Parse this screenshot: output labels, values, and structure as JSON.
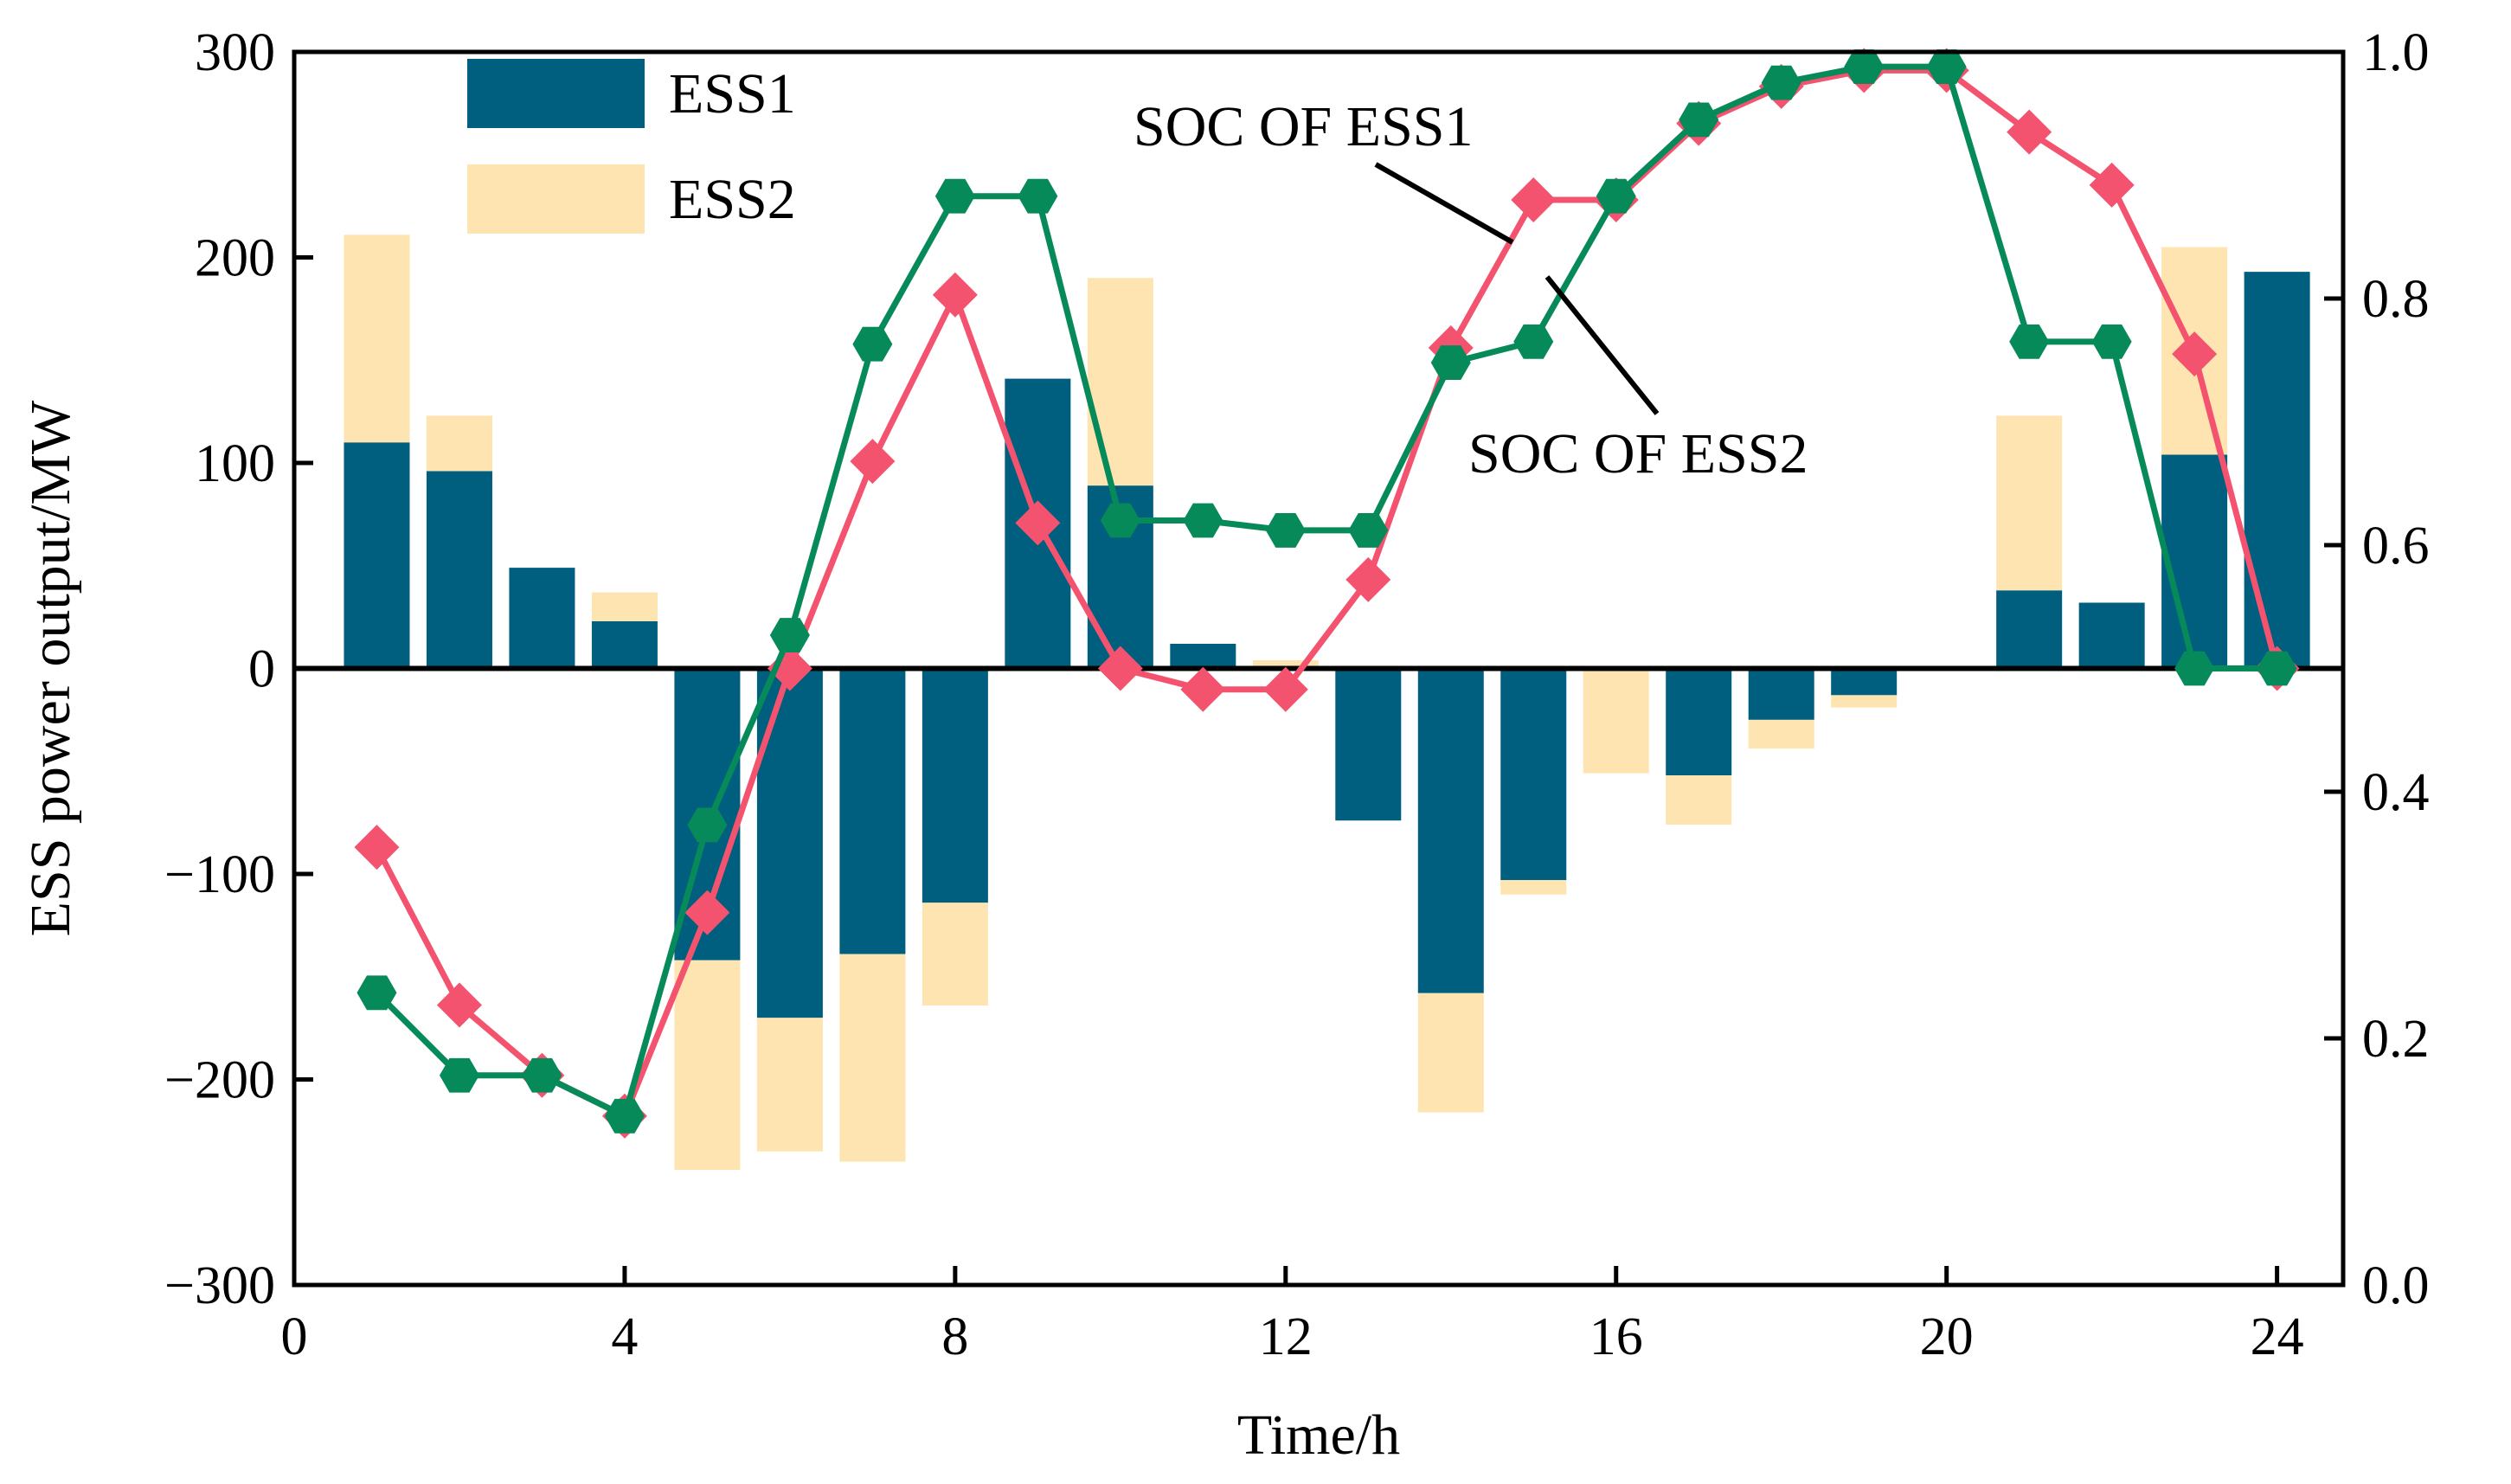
{
  "chart_data": {
    "type": "bar",
    "title": "",
    "xlabel": "Time/h",
    "ylabel": "ESS power output/MW",
    "xlim": [
      0,
      24.8
    ],
    "ylim": [
      -300,
      300
    ],
    "y2lim": [
      0,
      1.0
    ],
    "x_ticks": [
      0,
      4,
      8,
      12,
      16,
      20,
      24
    ],
    "y_ticks": [
      -300,
      -200,
      -100,
      0,
      100,
      200,
      300
    ],
    "y_tick_labels": [
      "−300",
      "−200",
      "−100",
      "0",
      "100",
      "200",
      "300"
    ],
    "y2_ticks": [
      0.0,
      0.2,
      0.4,
      0.6,
      0.8,
      1.0
    ],
    "y2_tick_labels": [
      "0.0",
      "0.2",
      "0.4",
      "0.6",
      "0.8",
      "1.0"
    ],
    "categories": [
      1,
      2,
      3,
      4,
      5,
      6,
      7,
      8,
      9,
      10,
      11,
      12,
      13,
      14,
      15,
      16,
      17,
      18,
      19,
      20,
      21,
      22,
      23,
      24
    ],
    "series": [
      {
        "name": "ESS1",
        "kind": "bar-stacked",
        "color": "#005E7E",
        "values": [
          110,
          96,
          49,
          23,
          -142,
          -170,
          -139,
          -114,
          141,
          89,
          12,
          0,
          -74,
          -158,
          -103,
          0,
          -52,
          -25,
          -13,
          0,
          38,
          32,
          104,
          193
        ]
      },
      {
        "name": "ESS2",
        "kind": "bar-stacked",
        "color": "#FDE4B1",
        "values": [
          101,
          27,
          0,
          14,
          -102,
          -65,
          -101,
          -50,
          0,
          101,
          0,
          4,
          0,
          -58,
          -7,
          -51,
          -24,
          -14,
          -6,
          0,
          85,
          0,
          101,
          0
        ]
      },
      {
        "name": "SOC OF ESS1",
        "kind": "line",
        "axis": "right",
        "color": "#F3536E",
        "marker": "diamond",
        "values": [
          0.355,
          0.227,
          0.17,
          0.137,
          0.302,
          0.5,
          0.668,
          0.803,
          0.618,
          0.5,
          0.483,
          0.483,
          0.572,
          0.76,
          0.88,
          0.88,
          0.942,
          0.972,
          0.985,
          0.985,
          0.935,
          0.892,
          0.755,
          0.5
        ]
      },
      {
        "name": "SOC OF ESS2",
        "kind": "line",
        "axis": "right",
        "color": "#078A5A",
        "marker": "hexagon",
        "values": [
          0.237,
          0.17,
          0.17,
          0.137,
          0.373,
          0.527,
          0.763,
          0.883,
          0.883,
          0.62,
          0.62,
          0.612,
          0.612,
          0.748,
          0.765,
          0.883,
          0.945,
          0.975,
          0.988,
          0.988,
          0.765,
          0.765,
          0.5,
          0.5
        ]
      }
    ],
    "legend": {
      "position": "top-left",
      "entries": [
        {
          "label": "ESS1",
          "color": "#005E7E"
        },
        {
          "label": "ESS2",
          "color": "#FDE4B1"
        }
      ]
    },
    "annotations": [
      {
        "text": "SOC OF ESS1",
        "target_series": "SOC OF ESS1",
        "target_x": 14.7
      },
      {
        "text": "SOC OF ESS2",
        "target_series": "SOC OF ESS2",
        "target_x": 15.5
      }
    ],
    "grid": false
  }
}
